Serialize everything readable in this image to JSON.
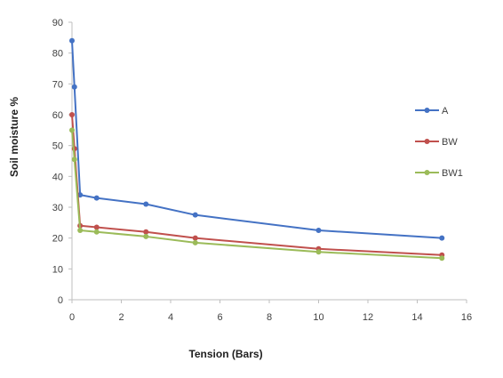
{
  "chart_data": {
    "type": "line",
    "xlabel": "Tension (Bars)",
    "ylabel": "Soil moisture %",
    "xlim": [
      0,
      16
    ],
    "ylim": [
      0,
      90
    ],
    "xticks": [
      0,
      2,
      4,
      6,
      8,
      10,
      12,
      14,
      16
    ],
    "yticks": [
      0,
      10,
      20,
      30,
      40,
      50,
      60,
      70,
      80,
      90
    ],
    "grid": false,
    "legend_position": "right",
    "series": [
      {
        "name": "A",
        "color": "#4472C4",
        "x": [
          0,
          0.1,
          0.33,
          1,
          3,
          5,
          10,
          15
        ],
        "y": [
          84,
          69,
          34,
          33,
          31,
          27.5,
          22.5,
          20
        ]
      },
      {
        "name": "BW",
        "color": "#C0504D",
        "x": [
          0,
          0.1,
          0.33,
          1,
          3,
          5,
          10,
          15
        ],
        "y": [
          60,
          49,
          24,
          23.5,
          22,
          20,
          16.5,
          14.5
        ]
      },
      {
        "name": "BW1",
        "color": "#9BBB59",
        "x": [
          0,
          0.1,
          0.33,
          1,
          3,
          5,
          10,
          15
        ],
        "y": [
          55,
          45.5,
          22.5,
          22,
          20.5,
          18.5,
          15.5,
          13.5
        ]
      }
    ]
  }
}
